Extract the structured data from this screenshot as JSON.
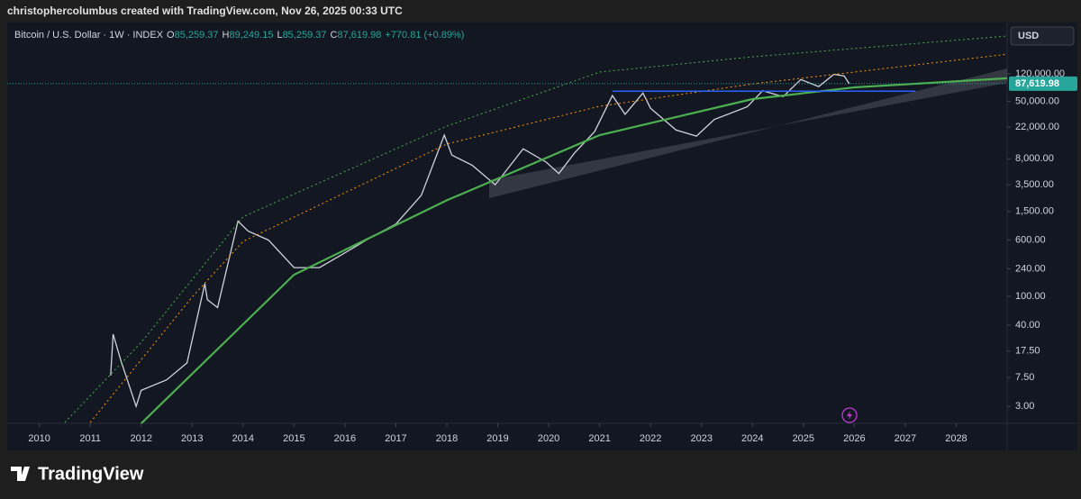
{
  "header": {
    "attribution": "christophercolumbus created with TradingView.com, Nov 26, 2025 00:33 UTC",
    "footer_brand": "TradingView"
  },
  "chart_data": {
    "type": "line",
    "log": true,
    "symbol": "Bitcoin / U.S. Dollar · 1W · INDEX",
    "ohlc": [
      {
        "key": "O",
        "label": "85,259.37"
      },
      {
        "key": "H",
        "label": "89,249.15"
      },
      {
        "key": "L",
        "label": "85,259.37"
      },
      {
        "key": "C",
        "label": "87,619.98"
      }
    ],
    "change": "+770.81 (+0.89%)",
    "currency": "USD",
    "last_price": {
      "value": 87619.98,
      "label": "87,619.98"
    },
    "xlim": [
      2009.37,
      2029.0
    ],
    "xticks": [
      2010,
      2011,
      2012,
      2013,
      2014,
      2015,
      2016,
      2017,
      2018,
      2019,
      2020,
      2021,
      2022,
      2023,
      2024,
      2025,
      2026,
      2027,
      2028
    ],
    "ylim": [
      1.75,
      615000
    ],
    "yticks": [
      {
        "value": 3,
        "label": "3.00"
      },
      {
        "value": 7.5,
        "label": "7.50"
      },
      {
        "value": 17.5,
        "label": "17.50"
      },
      {
        "value": 40,
        "label": "40.00"
      },
      {
        "value": 100,
        "label": "100.00"
      },
      {
        "value": 240,
        "label": "240.00"
      },
      {
        "value": 600,
        "label": "600.00"
      },
      {
        "value": 1500,
        "label": "1,500.00"
      },
      {
        "value": 3500,
        "label": "3,500.00"
      },
      {
        "value": 8000,
        "label": "8,000.00"
      },
      {
        "value": 22000,
        "label": "22,000.00"
      },
      {
        "value": 50000,
        "label": "50,000.00"
      },
      {
        "value": 120000,
        "label": "120,000.00"
      }
    ],
    "series": [
      {
        "name": "price",
        "color": "#d0d3da",
        "width": 1.3,
        "dash": "",
        "x": [
          2011.4,
          2011.45,
          2011.6,
          2011.9,
          2012.0,
          2012.5,
          2012.9,
          2013.25,
          2013.3,
          2013.5,
          2013.9,
          2014.1,
          2014.5,
          2015.0,
          2015.5,
          2016.0,
          2016.5,
          2017.0,
          2017.5,
          2017.95,
          2018.1,
          2018.5,
          2018.95,
          2019.5,
          2019.95,
          2020.2,
          2020.5,
          2020.9,
          2021.25,
          2021.5,
          2021.85,
          2022.0,
          2022.5,
          2022.9,
          2023.25,
          2023.9,
          2024.2,
          2024.6,
          2024.95,
          2025.3,
          2025.6,
          2025.8,
          2025.9
        ],
        "values": [
          8,
          30,
          13,
          3,
          5,
          7,
          12,
          150,
          90,
          70,
          1100,
          800,
          600,
          250,
          250,
          400,
          650,
          1000,
          2500,
          17000,
          9000,
          6500,
          3500,
          11000,
          7200,
          5000,
          9500,
          19000,
          60000,
          33000,
          65000,
          40000,
          20000,
          16500,
          28000,
          42000,
          70000,
          58000,
          100000,
          80000,
          118000,
          112000,
          87619.98
        ]
      },
      {
        "name": "support",
        "color": "#4caf50",
        "width": 2.2,
        "dash": "",
        "x": [
          2012.0,
          2015.0,
          2018.0,
          2021.0,
          2024.0,
          2026.0,
          2029.0
        ],
        "values": [
          1.74,
          199,
          2130,
          17000,
          53700,
          78000,
          104000
        ]
      },
      {
        "name": "mid",
        "color": "#ff9800",
        "width": 1,
        "dash": "2 3",
        "x": [
          2011.0,
          2013.0,
          2014.0,
          2018.0,
          2021.0,
          2024.0,
          2029.0
        ],
        "values": [
          1.8,
          98,
          575,
          12800,
          42600,
          87000,
          224000
        ]
      },
      {
        "name": "upper",
        "color": "#4caf50",
        "width": 1,
        "dash": "2 3",
        "x": [
          2010.5,
          2012.0,
          2014.0,
          2018.0,
          2021.0,
          2024.0,
          2029.0
        ],
        "values": [
          1.8,
          23,
          1260,
          22700,
          127000,
          206000,
          400000
        ]
      },
      {
        "name": "level",
        "color": "#2962ff",
        "width": 1.5,
        "dash": "",
        "x": [
          2021.25,
          2027.2
        ],
        "values": [
          69000,
          69000
        ]
      }
    ]
  }
}
